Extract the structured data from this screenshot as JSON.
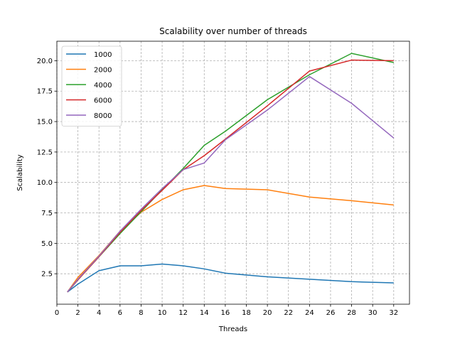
{
  "chart_data": {
    "type": "line",
    "title": "Scalability over number of threads",
    "xlabel": "Threads",
    "ylabel": "Scalability",
    "xlim": [
      0,
      33.5
    ],
    "ylim": [
      0.0,
      21.6
    ],
    "x_ticks": [
      "0",
      "2",
      "4",
      "6",
      "8",
      "10",
      "12",
      "14",
      "16",
      "18",
      "20",
      "22",
      "24",
      "26",
      "28",
      "30",
      "32"
    ],
    "y_ticks": [
      "2.5",
      "5.0",
      "7.5",
      "10.0",
      "12.5",
      "15.0",
      "17.5",
      "20.0"
    ],
    "grid": true,
    "legend_position": "top-left",
    "x": [
      1,
      2,
      4,
      6,
      8,
      10,
      12,
      14,
      16,
      20,
      24,
      28,
      32
    ],
    "series": [
      {
        "name": "1000",
        "color": "#1f77b4",
        "values": [
          1.0,
          1.65,
          2.75,
          3.15,
          3.15,
          3.3,
          3.15,
          2.9,
          2.55,
          2.25,
          2.05,
          1.85,
          1.75
        ]
      },
      {
        "name": "2000",
        "color": "#ff7f0e",
        "values": [
          1.0,
          2.2,
          4.0,
          6.0,
          7.55,
          8.6,
          9.4,
          9.75,
          9.5,
          9.4,
          8.8,
          8.5,
          8.15
        ]
      },
      {
        "name": "4000",
        "color": "#2ca02c",
        "values": [
          1.0,
          2.0,
          3.9,
          5.8,
          7.6,
          9.4,
          11.15,
          13.05,
          14.2,
          16.8,
          18.85,
          20.6,
          19.85
        ]
      },
      {
        "name": "6000",
        "color": "#d62728",
        "values": [
          1.0,
          2.0,
          3.9,
          5.9,
          7.7,
          9.35,
          11.05,
          12.2,
          13.55,
          16.3,
          19.15,
          20.05,
          20.0
        ]
      },
      {
        "name": "8000",
        "color": "#9467bd",
        "values": [
          1.0,
          2.05,
          3.95,
          6.0,
          7.8,
          9.5,
          11.05,
          11.6,
          13.5,
          15.95,
          18.7,
          16.5,
          13.65
        ]
      }
    ]
  }
}
